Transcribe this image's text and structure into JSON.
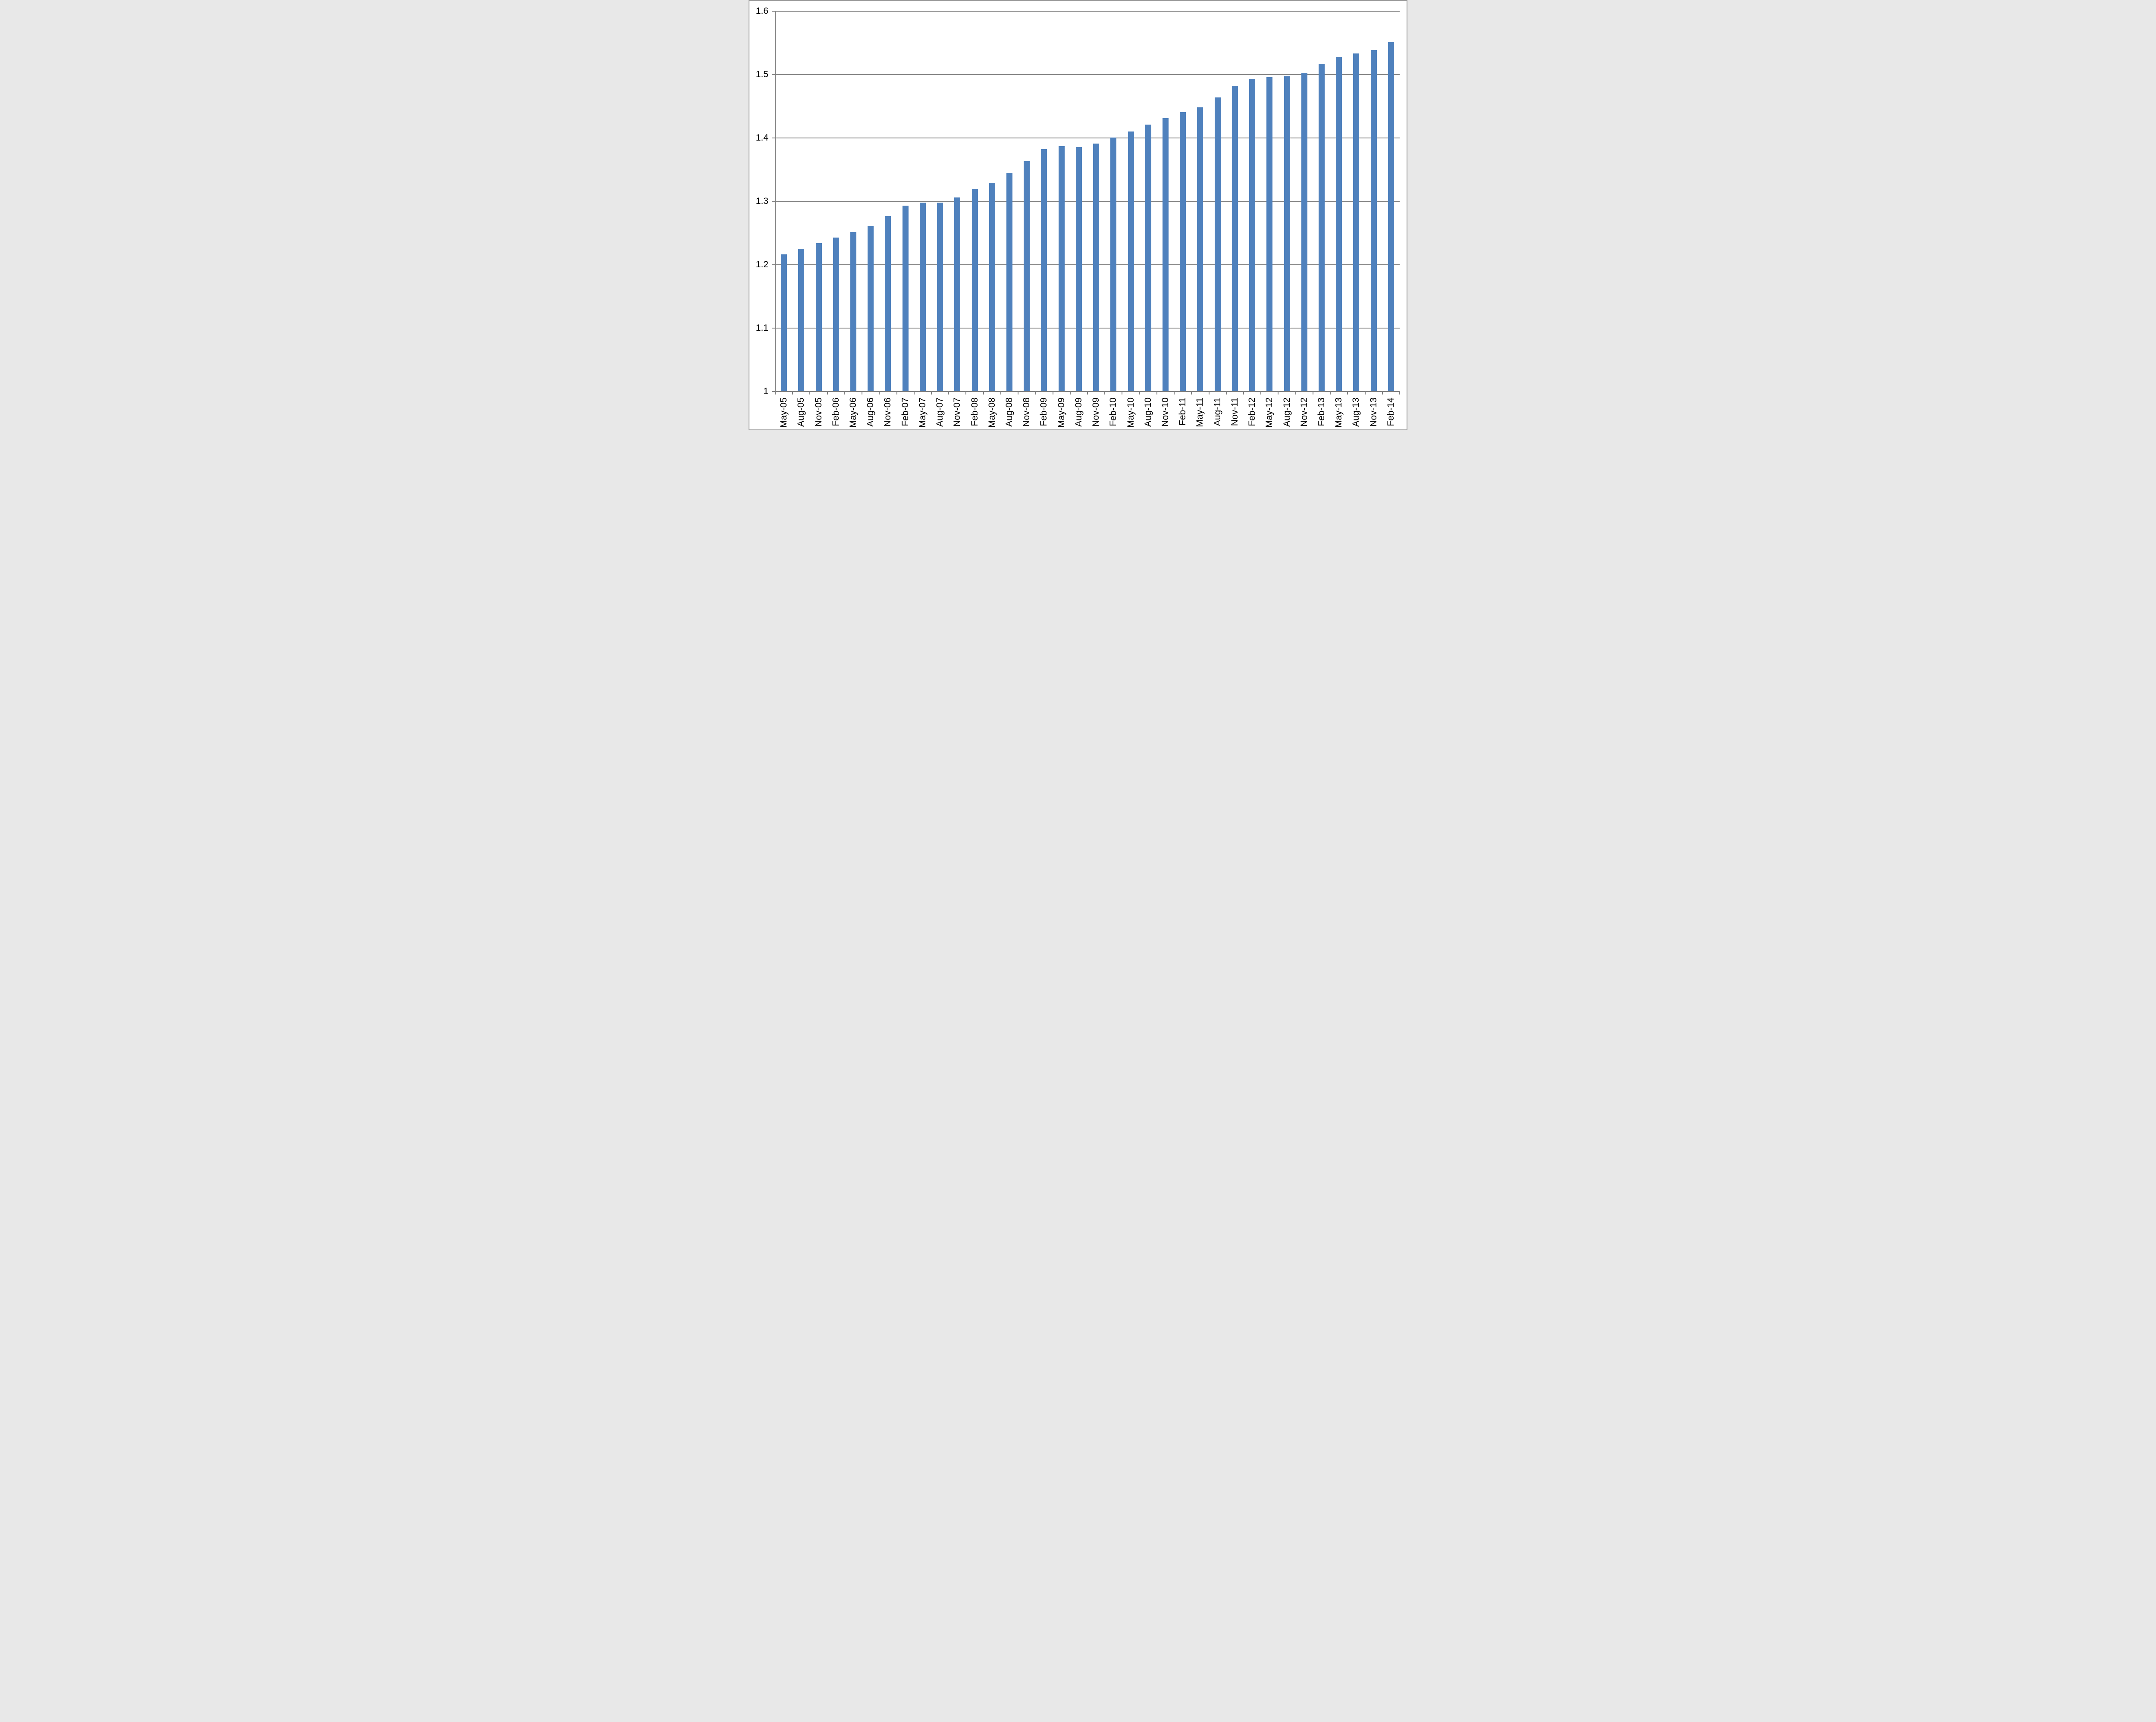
{
  "chart_data": {
    "type": "bar",
    "title": "",
    "xlabel": "",
    "ylabel": "",
    "categories": [
      "May-05",
      "Aug-05",
      "Nov-05",
      "Feb-06",
      "May-06",
      "Aug-06",
      "Nov-06",
      "Feb-07",
      "May-07",
      "Aug-07",
      "Nov-07",
      "Feb-08",
      "May-08",
      "Aug-08",
      "Nov-08",
      "Feb-09",
      "May-09",
      "Aug-09",
      "Nov-09",
      "Feb-10",
      "May-10",
      "Aug-10",
      "Nov-10",
      "Feb-11",
      "May-11",
      "Aug-11",
      "Nov-11",
      "Feb-12",
      "May-12",
      "Aug-12",
      "Nov-12",
      "Feb-13",
      "May-13",
      "Aug-13",
      "Nov-13",
      "Feb-14"
    ],
    "values": [
      1.216,
      1.225,
      1.234,
      1.243,
      1.252,
      1.261,
      1.277,
      1.293,
      1.298,
      1.298,
      1.306,
      1.319,
      1.329,
      1.345,
      1.363,
      1.382,
      1.387,
      1.386,
      1.391,
      1.401,
      1.41,
      1.421,
      1.431,
      1.441,
      1.448,
      1.464,
      1.482,
      1.493,
      1.496,
      1.497,
      1.502,
      1.517,
      1.528,
      1.533,
      1.539,
      1.551
    ],
    "ylim": [
      1,
      1.6
    ],
    "y_ticks": [
      {
        "label": "1.6",
        "value": 1.6
      },
      {
        "label": "1.5",
        "value": 1.5
      },
      {
        "label": "1.4",
        "value": 1.4
      },
      {
        "label": "1.3",
        "value": 1.3
      },
      {
        "label": "1.2",
        "value": 1.2
      },
      {
        "label": "1.1",
        "value": 1.1
      },
      {
        "label": "1",
        "value": 1.0
      }
    ],
    "grid": true,
    "legend": false,
    "colors": {
      "bar": "#4F81BD",
      "gridline": "#878787",
      "axis": "#7F7F7F",
      "text": "#000000",
      "background": "#FFFFFF",
      "frame_border": "#9E9E9E"
    }
  }
}
